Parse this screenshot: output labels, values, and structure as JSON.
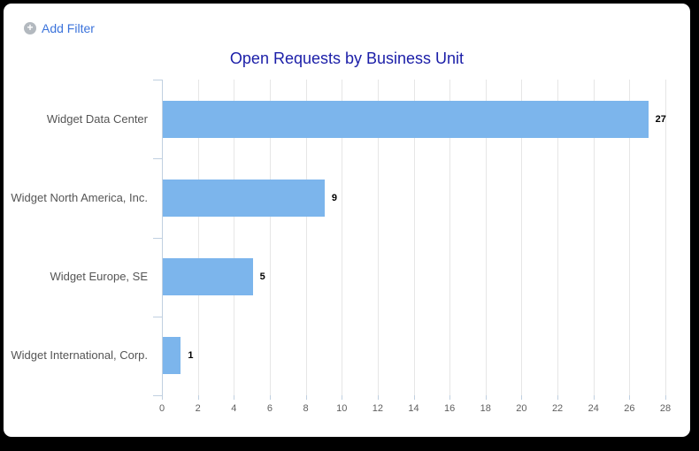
{
  "toolbar": {
    "add_filter_label": "Add Filter",
    "plus_icon_glyph": "+"
  },
  "chart_data": {
    "type": "bar",
    "title": "Open Requests by Business Unit",
    "categories": [
      "Widget Data Center",
      "Widget North America, Inc.",
      "Widget Europe, SE",
      "Widget International, Corp."
    ],
    "values": [
      27,
      9,
      5,
      1
    ],
    "xlabel": "",
    "ylabel": "",
    "xlim": [
      0,
      28
    ],
    "tick_step": 2,
    "grid": true,
    "legend": "none",
    "colors": {
      "bar": "#7CB5EC",
      "title": "#1b1ea8",
      "axis_line": "#C0D0E0",
      "gridline": "#E6E6E6",
      "tick_label": "#606060",
      "category_label": "#555555",
      "value_label": "#000000",
      "link": "#3b73db",
      "plus_icon_bg": "#b3b9bf",
      "card_bg": "#ffffff",
      "frame_bg": "#000000"
    }
  }
}
